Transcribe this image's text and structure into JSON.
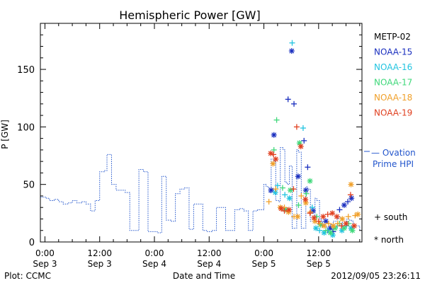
{
  "title": "Hemispheric Power [GW]",
  "footer": {
    "left": "Plot: CCMC",
    "center": "Date and Time",
    "right": "2012/09/05 23:26:11"
  },
  "side_labels": {
    "ovation_line1": "— Ovation",
    "ovation_line2": "Prime HPI",
    "south": "+ south",
    "north": "* north"
  },
  "colors": {
    "axis": "#000000",
    "ovation": "#2255cc",
    "METP-02": "#000000",
    "NOAA-15": "#1a2fbf",
    "NOAA-16": "#22c4e0",
    "NOAA-17": "#3fd87a",
    "NOAA-18": "#f0a02a",
    "NOAA-19": "#e04020"
  },
  "chart_data": {
    "type": "scatter",
    "title": "Hemispheric Power [GW]",
    "xlabel": "Date and Time",
    "ylabel": "P [GW]",
    "x_unit": "hours since Sep 3 00:00",
    "xlim": [
      -1,
      69.5
    ],
    "ylim": [
      0,
      190
    ],
    "yticks": [
      0,
      50,
      100,
      150
    ],
    "xticks": [
      {
        "x": 0,
        "line1": "0:00",
        "line2": "Sep 3"
      },
      {
        "x": 12,
        "line1": "12:00",
        "line2": "Sep 3"
      },
      {
        "x": 24,
        "line1": "0:00",
        "line2": "Sep 4"
      },
      {
        "x": 36,
        "line1": "12:00",
        "line2": "Sep 4"
      },
      {
        "x": 48,
        "line1": "0:00",
        "line2": "Sep 5"
      },
      {
        "x": 60,
        "line1": "12:00",
        "line2": "Sep 5"
      }
    ],
    "legend": [
      "METP-02",
      "NOAA-15",
      "NOAA-16",
      "NOAA-17",
      "NOAA-18",
      "NOAA-19"
    ],
    "legend_position": "right",
    "ovation": [
      [
        -1,
        39
      ],
      [
        0.3,
        38
      ],
      [
        1,
        36
      ],
      [
        2,
        37
      ],
      [
        3,
        35
      ],
      [
        4,
        33
      ],
      [
        5,
        34
      ],
      [
        6,
        36
      ],
      [
        7,
        34
      ],
      [
        8,
        35
      ],
      [
        9,
        33
      ],
      [
        10,
        27
      ],
      [
        11,
        36
      ],
      [
        11.6,
        36
      ],
      [
        12,
        61
      ],
      [
        13,
        62
      ],
      [
        13.6,
        76
      ],
      [
        14.6,
        50
      ],
      [
        15.6,
        45
      ],
      [
        16.6,
        45
      ],
      [
        17.6,
        43
      ],
      [
        18.6,
        10
      ],
      [
        19.6,
        10
      ],
      [
        20.6,
        63
      ],
      [
        21.6,
        61
      ],
      [
        22.6,
        9
      ],
      [
        23.6,
        9
      ],
      [
        24.6,
        8
      ],
      [
        25.6,
        57
      ],
      [
        26.6,
        19
      ],
      [
        27.6,
        18
      ],
      [
        28.6,
        42
      ],
      [
        29.6,
        46
      ],
      [
        30.6,
        47
      ],
      [
        31.6,
        11
      ],
      [
        32.6,
        33
      ],
      [
        33.6,
        33
      ],
      [
        34.6,
        10
      ],
      [
        35.6,
        9
      ],
      [
        36.6,
        10
      ],
      [
        37.6,
        30
      ],
      [
        38.6,
        30
      ],
      [
        39.6,
        10
      ],
      [
        40.6,
        10
      ],
      [
        41.6,
        28
      ],
      [
        42.6,
        29
      ],
      [
        43.6,
        27
      ],
      [
        44.6,
        10
      ],
      [
        45.6,
        27
      ],
      [
        46.6,
        28
      ],
      [
        47.6,
        28
      ],
      [
        48,
        50
      ],
      [
        48.5,
        48
      ],
      [
        49.1,
        43
      ],
      [
        49.6,
        72
      ],
      [
        50.2,
        70
      ],
      [
        50.6,
        36
      ],
      [
        51.2,
        35
      ],
      [
        51.6,
        82
      ],
      [
        52.2,
        80
      ],
      [
        52.6,
        52
      ],
      [
        53.1,
        50
      ],
      [
        53.6,
        66
      ],
      [
        54.2,
        12
      ],
      [
        54.6,
        12
      ],
      [
        55.2,
        80
      ],
      [
        55.6,
        78
      ],
      [
        56.2,
        12
      ],
      [
        56.6,
        12
      ],
      [
        57.2,
        48
      ],
      [
        57.6,
        46
      ],
      [
        58.2,
        18
      ],
      [
        58.6,
        18
      ],
      [
        59.2,
        38
      ],
      [
        59.6,
        36
      ],
      [
        60.2,
        20
      ],
      [
        60.6,
        18
      ],
      [
        61.2,
        14
      ],
      [
        61.6,
        13
      ],
      [
        62.2,
        14
      ],
      [
        62.6,
        15
      ],
      [
        63.2,
        18
      ],
      [
        63.6,
        18
      ],
      [
        64.2,
        22
      ],
      [
        64.6,
        21
      ],
      [
        65.2,
        12
      ],
      [
        65.6,
        14
      ],
      [
        66.2,
        20
      ],
      [
        66.6,
        19
      ],
      [
        67.2,
        18
      ],
      [
        67.6,
        14
      ],
      [
        68.2,
        14
      ],
      [
        69,
        10
      ]
    ],
    "series": [
      {
        "name": "NOAA-15",
        "points": [
          [
            50.2,
            93,
            "north"
          ],
          [
            53.3,
            124,
            "south"
          ],
          [
            54.1,
            166,
            "north"
          ],
          [
            54.6,
            120,
            "south"
          ],
          [
            55.5,
            57,
            "north"
          ],
          [
            56.8,
            88,
            "south"
          ],
          [
            57.6,
            65,
            "south"
          ],
          [
            57.2,
            45,
            "north"
          ],
          [
            58.8,
            27,
            "north"
          ],
          [
            60.8,
            15,
            "south"
          ],
          [
            61.6,
            18,
            "north"
          ],
          [
            62.6,
            12,
            "north"
          ],
          [
            64.6,
            28,
            "south"
          ],
          [
            65.6,
            32,
            "north"
          ],
          [
            66.4,
            35,
            "south"
          ],
          [
            67.2,
            38,
            "north"
          ],
          [
            62,
            10,
            "south"
          ],
          [
            63.2,
            9,
            "south"
          ],
          [
            49.6,
            45,
            "north"
          ]
        ]
      },
      {
        "name": "NOAA-16",
        "points": [
          [
            54.2,
            173,
            "south"
          ],
          [
            56.6,
            99,
            "south"
          ],
          [
            51,
            49,
            "south"
          ],
          [
            50.5,
            43,
            "north"
          ],
          [
            52.6,
            41,
            "south"
          ],
          [
            53.6,
            38,
            "north"
          ],
          [
            58.6,
            30,
            "south"
          ],
          [
            59.4,
            12,
            "north"
          ],
          [
            60.2,
            10,
            "south"
          ],
          [
            61.2,
            8,
            "north"
          ],
          [
            62.1,
            10,
            "south"
          ],
          [
            63.1,
            6,
            "north"
          ],
          [
            64.1,
            14,
            "south"
          ],
          [
            65.1,
            10,
            "north"
          ],
          [
            66.1,
            14,
            "south"
          ],
          [
            67.1,
            12,
            "north"
          ]
        ]
      },
      {
        "name": "NOAA-17",
        "points": [
          [
            50.8,
            106,
            "south"
          ],
          [
            55.8,
            86,
            "north"
          ],
          [
            50.2,
            80,
            "south"
          ],
          [
            52.1,
            47,
            "south"
          ],
          [
            52.8,
            28,
            "north"
          ],
          [
            53.8,
            45,
            "north"
          ],
          [
            55.6,
            32,
            "south"
          ],
          [
            58.1,
            53,
            "north"
          ],
          [
            57.3,
            42,
            "south"
          ],
          [
            59.6,
            22,
            "south"
          ],
          [
            60.4,
            15,
            "north"
          ],
          [
            61.6,
            10,
            "south"
          ],
          [
            62.6,
            8,
            "north"
          ],
          [
            63.6,
            12,
            "north"
          ],
          [
            64.6,
            16,
            "south"
          ],
          [
            65.6,
            12,
            "north"
          ],
          [
            66.6,
            16,
            "south"
          ],
          [
            67.4,
            10,
            "north"
          ]
        ]
      },
      {
        "name": "NOAA-18",
        "points": [
          [
            49.1,
            35,
            "south"
          ],
          [
            50,
            68,
            "north"
          ],
          [
            50.6,
            46,
            "south"
          ],
          [
            51.6,
            30,
            "north"
          ],
          [
            52.5,
            30,
            "south"
          ],
          [
            53.4,
            26,
            "north"
          ],
          [
            54.6,
            22,
            "south"
          ],
          [
            55.4,
            22,
            "north"
          ],
          [
            56.2,
            40,
            "south"
          ],
          [
            57.2,
            34,
            "north"
          ],
          [
            58.2,
            26,
            "south"
          ],
          [
            59.2,
            18,
            "north"
          ],
          [
            60.2,
            16,
            "south"
          ],
          [
            61.2,
            14,
            "north"
          ],
          [
            62.2,
            16,
            "south"
          ],
          [
            63.2,
            14,
            "north"
          ],
          [
            64.2,
            16,
            "south"
          ],
          [
            65.2,
            20,
            "north"
          ],
          [
            66.5,
            22,
            "south"
          ],
          [
            67.1,
            50,
            "north"
          ],
          [
            68,
            23,
            "south"
          ],
          [
            68.6,
            24,
            "north"
          ]
        ]
      },
      {
        "name": "NOAA-19",
        "points": [
          [
            49.5,
            77,
            "north"
          ],
          [
            50.1,
            76,
            "south"
          ],
          [
            50.6,
            72,
            "north"
          ],
          [
            51.8,
            29,
            "north"
          ],
          [
            52.5,
            27,
            "south"
          ],
          [
            53.5,
            28,
            "north"
          ],
          [
            54.5,
            46,
            "south"
          ],
          [
            55.2,
            100,
            "south"
          ],
          [
            56.1,
            83,
            "north"
          ],
          [
            57.1,
            37,
            "north"
          ],
          [
            58.1,
            25,
            "south"
          ],
          [
            59,
            21,
            "north"
          ],
          [
            60,
            18,
            "south"
          ],
          [
            61,
            22,
            "north"
          ],
          [
            62,
            24,
            "south"
          ],
          [
            63,
            25,
            "north"
          ],
          [
            64,
            22,
            "north"
          ],
          [
            65,
            14,
            "south"
          ],
          [
            66,
            16,
            "north"
          ],
          [
            67,
            41,
            "south"
          ],
          [
            67.8,
            14,
            "north"
          ]
        ]
      }
    ]
  }
}
